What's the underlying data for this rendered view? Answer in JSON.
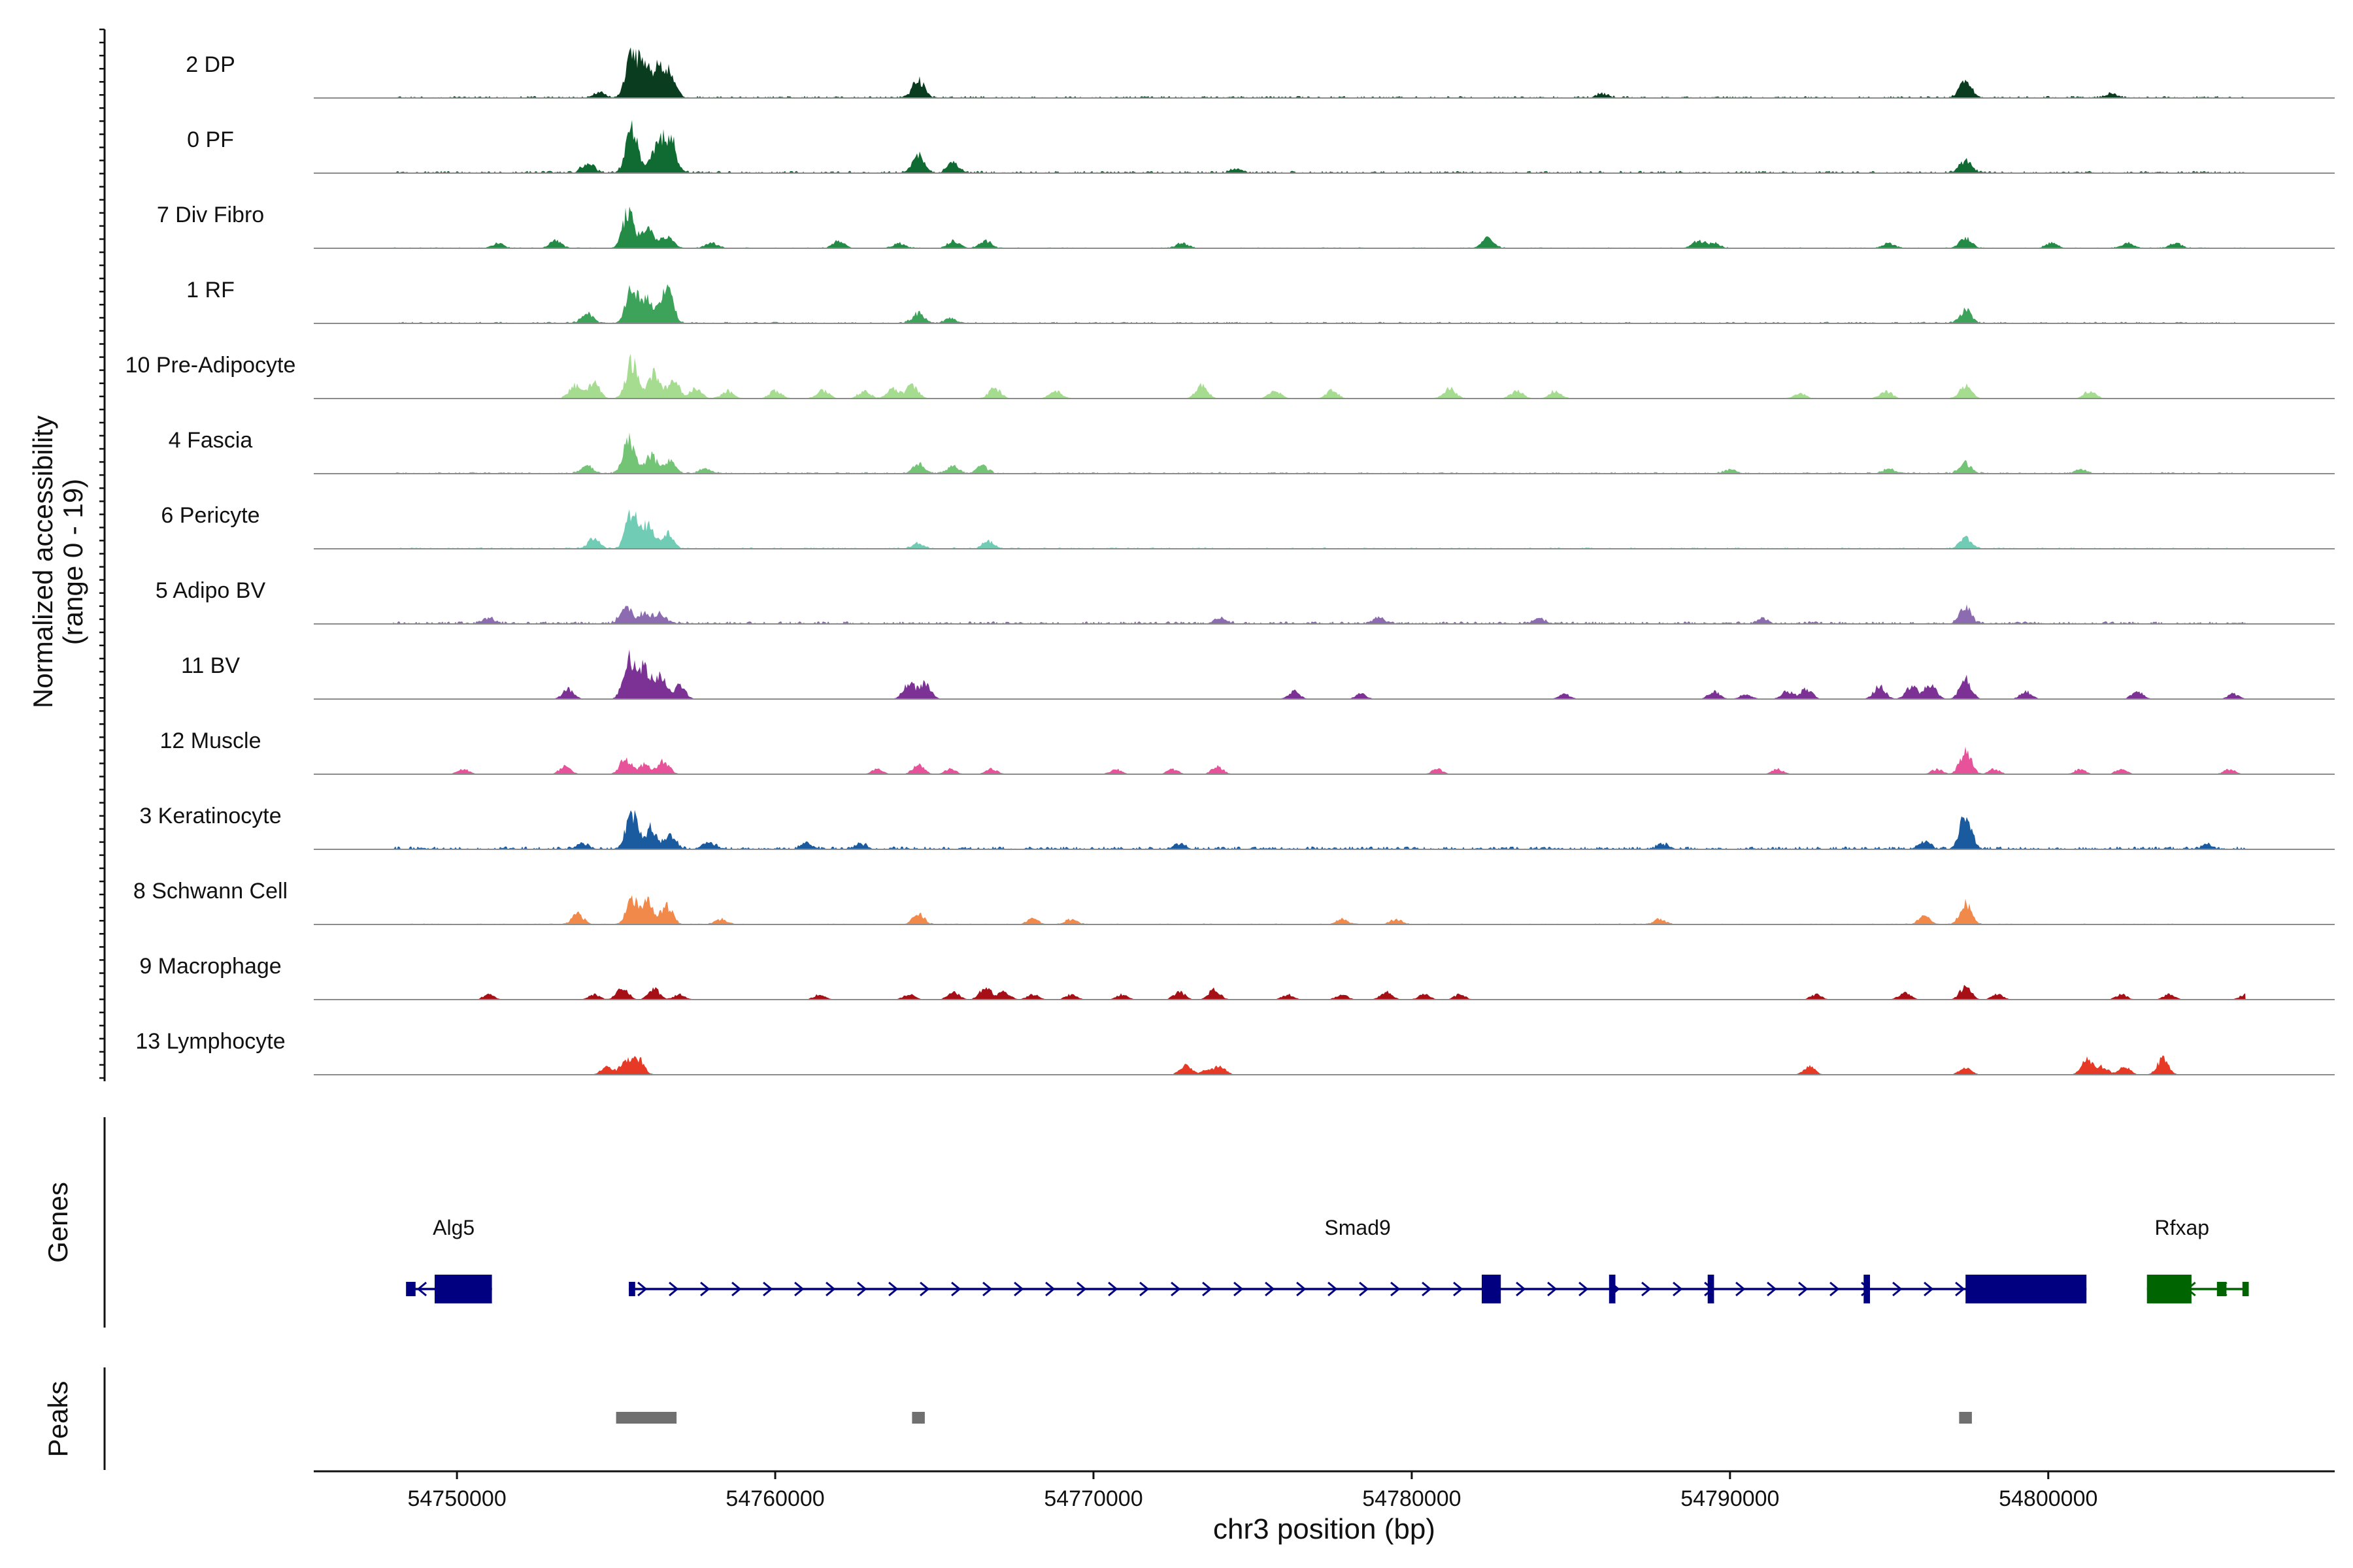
{
  "chart_data": {
    "type": "coverage",
    "y_axis_title_line1": "Normalized accessibility",
    "y_axis_title_line2": "(range 0 - 19)",
    "y_range": [
      0,
      19
    ],
    "x_axis_title": "chr3 position (bp)",
    "x_range": [
      54745500,
      54809000
    ],
    "x_ticks": [
      54750000,
      54760000,
      54770000,
      54780000,
      54790000,
      54800000
    ],
    "x_tick_labels": [
      "54750000",
      "54760000",
      "54770000",
      "54780000",
      "54790000",
      "54800000"
    ],
    "data_start": 54748000,
    "data_end": 54806200,
    "tracks": [
      {
        "name": "2 DP",
        "color": "#0a3d1f",
        "noise": 0.06,
        "peaks": [
          [
            54755500,
            18
          ],
          [
            54755900,
            10
          ],
          [
            54756300,
            11
          ],
          [
            54756700,
            9
          ],
          [
            54764500,
            7
          ],
          [
            54797400,
            7
          ],
          [
            54754500,
            2
          ],
          [
            54786000,
            1.5
          ],
          [
            54802000,
            1.5
          ]
        ]
      },
      {
        "name": "0 PF",
        "color": "#0f6b31",
        "noise": 0.07,
        "peaks": [
          [
            54755500,
            17
          ],
          [
            54756300,
            12
          ],
          [
            54756700,
            13
          ],
          [
            54754100,
            4
          ],
          [
            54764500,
            7
          ],
          [
            54765600,
            4
          ],
          [
            54797400,
            5
          ],
          [
            54774500,
            1.5
          ]
        ]
      },
      {
        "name": "7 Div Fibro",
        "color": "#238b45",
        "noise": 0.03,
        "peaks": [
          [
            54755400,
            15
          ],
          [
            54756000,
            7
          ],
          [
            54756600,
            5
          ],
          [
            54753100,
            3
          ],
          [
            54751300,
            2
          ],
          [
            54758000,
            2
          ],
          [
            54762000,
            3
          ],
          [
            54763900,
            2
          ],
          [
            54765600,
            3
          ],
          [
            54766600,
            3
          ],
          [
            54772800,
            2
          ],
          [
            54782400,
            4
          ],
          [
            54789000,
            3
          ],
          [
            54789500,
            2
          ],
          [
            54795000,
            2
          ],
          [
            54797400,
            4
          ],
          [
            54800100,
            2
          ],
          [
            54802500,
            2
          ],
          [
            54804000,
            2
          ]
        ]
      },
      {
        "name": "1 RF",
        "color": "#3da35a",
        "noise": 0.05,
        "peaks": [
          [
            54755500,
            14
          ],
          [
            54756000,
            9
          ],
          [
            54756600,
            14
          ],
          [
            54754100,
            4
          ],
          [
            54764500,
            4
          ],
          [
            54765500,
            2
          ],
          [
            54797400,
            5
          ]
        ]
      },
      {
        "name": "10 Pre-Adipocyte",
        "color": "#a5dc8f",
        "noise": 0.02,
        "peaks": [
          [
            54755500,
            14
          ],
          [
            54756200,
            10
          ],
          [
            54756800,
            7
          ],
          [
            54754300,
            6
          ],
          [
            54753700,
            5
          ],
          [
            54757500,
            4
          ],
          [
            54758500,
            3
          ],
          [
            54760000,
            3
          ],
          [
            54761500,
            3
          ],
          [
            54762800,
            3
          ],
          [
            54763700,
            4
          ],
          [
            54764300,
            5
          ],
          [
            54766900,
            4
          ],
          [
            54768800,
            3
          ],
          [
            54773400,
            5
          ],
          [
            54775700,
            3
          ],
          [
            54777500,
            3
          ],
          [
            54781200,
            4
          ],
          [
            54783300,
            3
          ],
          [
            54784500,
            3
          ],
          [
            54792200,
            2
          ],
          [
            54794900,
            3
          ],
          [
            54797400,
            5
          ],
          [
            54801300,
            3
          ]
        ]
      },
      {
        "name": "4 Fascia",
        "color": "#74c476",
        "noise": 0.05,
        "peaks": [
          [
            54755400,
            13
          ],
          [
            54756100,
            7
          ],
          [
            54756700,
            5
          ],
          [
            54754100,
            3
          ],
          [
            54757800,
            2
          ],
          [
            54764500,
            4
          ],
          [
            54765600,
            3
          ],
          [
            54766500,
            3
          ],
          [
            54797400,
            4
          ],
          [
            54795000,
            2
          ],
          [
            54790000,
            1.5
          ],
          [
            54801000,
            1.5
          ]
        ]
      },
      {
        "name": "6 Pericyte",
        "color": "#70ccb5",
        "noise": 0.04,
        "peaks": [
          [
            54755500,
            15
          ],
          [
            54756000,
            9
          ],
          [
            54756600,
            6
          ],
          [
            54754300,
            4
          ],
          [
            54764500,
            2
          ],
          [
            54766700,
            3
          ],
          [
            54797400,
            4
          ]
        ]
      },
      {
        "name": "5 Adipo BV",
        "color": "#8c6bb1",
        "noise": 0.08,
        "peaks": [
          [
            54755300,
            6
          ],
          [
            54755900,
            4
          ],
          [
            54756400,
            4
          ],
          [
            54751000,
            2
          ],
          [
            54797400,
            6
          ],
          [
            54774000,
            2
          ],
          [
            54779000,
            2
          ],
          [
            54784000,
            2
          ],
          [
            54791000,
            2
          ]
        ]
      },
      {
        "name": "11 BV",
        "color": "#7b3294",
        "noise": 0.0,
        "peaks": [
          [
            54755400,
            16
          ],
          [
            54755900,
            12
          ],
          [
            54756400,
            9
          ],
          [
            54757000,
            5
          ],
          [
            54753500,
            4
          ],
          [
            54764200,
            6
          ],
          [
            54764700,
            6
          ],
          [
            54776300,
            3
          ],
          [
            54778400,
            2
          ],
          [
            54784800,
            2
          ],
          [
            54789500,
            3
          ],
          [
            54790500,
            2
          ],
          [
            54791800,
            3
          ],
          [
            54792400,
            4
          ],
          [
            54794700,
            5
          ],
          [
            54795700,
            5
          ],
          [
            54796300,
            6
          ],
          [
            54797400,
            8
          ],
          [
            54799300,
            3
          ],
          [
            54802800,
            3
          ],
          [
            54805800,
            2
          ]
        ]
      },
      {
        "name": "12 Muscle",
        "color": "#e7539a",
        "noise": 0.0,
        "peaks": [
          [
            54750200,
            2
          ],
          [
            54753400,
            3
          ],
          [
            54755300,
            6
          ],
          [
            54755900,
            4
          ],
          [
            54756500,
            5
          ],
          [
            54763200,
            2
          ],
          [
            54764500,
            4
          ],
          [
            54765500,
            2
          ],
          [
            54766800,
            2
          ],
          [
            54770700,
            2
          ],
          [
            54772500,
            2
          ],
          [
            54773900,
            3
          ],
          [
            54780800,
            2
          ],
          [
            54791500,
            2
          ],
          [
            54796500,
            2
          ],
          [
            54797400,
            9
          ],
          [
            54798300,
            2
          ],
          [
            54801000,
            2
          ],
          [
            54802300,
            2
          ],
          [
            54805700,
            2
          ]
        ]
      },
      {
        "name": "3 Keratinocyte",
        "color": "#1a5a9e",
        "noise": 0.09,
        "peaks": [
          [
            54755500,
            14
          ],
          [
            54756100,
            8
          ],
          [
            54756700,
            5
          ],
          [
            54757900,
            3
          ],
          [
            54754000,
            2
          ],
          [
            54761000,
            2
          ],
          [
            54762700,
            2
          ],
          [
            54772700,
            2
          ],
          [
            54787900,
            2
          ],
          [
            54796100,
            3
          ],
          [
            54797400,
            12
          ],
          [
            54805000,
            1.5
          ]
        ]
      },
      {
        "name": "8 Schwann Cell",
        "color": "#f0894a",
        "noise": 0.03,
        "peaks": [
          [
            54755500,
            10
          ],
          [
            54756000,
            9
          ],
          [
            54756600,
            7
          ],
          [
            54753800,
            4
          ],
          [
            54758300,
            2
          ],
          [
            54764500,
            4
          ],
          [
            54768100,
            2
          ],
          [
            54769300,
            2
          ],
          [
            54777800,
            2
          ],
          [
            54779500,
            2
          ],
          [
            54787800,
            2
          ],
          [
            54796100,
            3
          ],
          [
            54797400,
            8
          ]
        ]
      },
      {
        "name": "9 Macrophage",
        "color": "#a50f15",
        "noise": 0.0,
        "peaks": [
          [
            54751000,
            2
          ],
          [
            54754300,
            2
          ],
          [
            54755200,
            5
          ],
          [
            54756200,
            4
          ],
          [
            54757000,
            2
          ],
          [
            54761400,
            2
          ],
          [
            54764200,
            2
          ],
          [
            54765600,
            3
          ],
          [
            54766600,
            5
          ],
          [
            54767200,
            3
          ],
          [
            54768100,
            2
          ],
          [
            54769300,
            2
          ],
          [
            54770900,
            2
          ],
          [
            54772700,
            3
          ],
          [
            54773800,
            4
          ],
          [
            54776100,
            2
          ],
          [
            54777800,
            2
          ],
          [
            54779200,
            3
          ],
          [
            54780400,
            2
          ],
          [
            54781500,
            2
          ],
          [
            54792700,
            2
          ],
          [
            54795500,
            3
          ],
          [
            54797400,
            5
          ],
          [
            54798400,
            2
          ],
          [
            54802300,
            2
          ],
          [
            54803800,
            2
          ],
          [
            54806200,
            2
          ]
        ]
      },
      {
        "name": "13 Lymphocyte",
        "color": "#e73a26",
        "noise": 0.0,
        "peaks": [
          [
            54754700,
            3
          ],
          [
            54755300,
            5
          ],
          [
            54755700,
            6
          ],
          [
            54772900,
            4
          ],
          [
            54773600,
            2
          ],
          [
            54774000,
            3
          ],
          [
            54792500,
            3
          ],
          [
            54797400,
            3
          ],
          [
            54801200,
            6
          ],
          [
            54801700,
            3
          ],
          [
            54802400,
            3
          ],
          [
            54803600,
            6
          ]
        ]
      }
    ],
    "genes_panel_label": "Genes",
    "genes": [
      {
        "name": "Alg5",
        "start": 54748500,
        "end": 54751100,
        "strand": "-",
        "color": "#000080",
        "label_pos": 54749900,
        "exons": [
          [
            54748400,
            54748700,
            "thin"
          ],
          [
            54749300,
            54751100,
            "thick"
          ]
        ]
      },
      {
        "name": "Smad9",
        "start": 54755400,
        "end": 54801200,
        "strand": "+",
        "color": "#000080",
        "label_pos": 54778300,
        "exons": [
          [
            54755400,
            54755600,
            "thin"
          ],
          [
            54782200,
            54782800,
            "thick"
          ],
          [
            54786200,
            54786400,
            "thick"
          ],
          [
            54789300,
            54789500,
            "thick"
          ],
          [
            54794200,
            54794400,
            "thick"
          ],
          [
            54797400,
            54801200,
            "thick"
          ]
        ]
      },
      {
        "name": "Rfxap",
        "start": 54803100,
        "end": 54806200,
        "strand": "-",
        "color": "#006400",
        "label_pos": 54804200,
        "exons": [
          [
            54803100,
            54804500,
            "thick"
          ],
          [
            54805300,
            54805600,
            "thin"
          ],
          [
            54806100,
            54806300,
            "thin"
          ]
        ]
      }
    ],
    "peaks_panel_label": "Peaks",
    "called_peaks": [
      [
        54755000,
        54756900
      ],
      [
        54764300,
        54764700
      ],
      [
        54797200,
        54797600
      ]
    ],
    "peak_color": "#707070"
  }
}
